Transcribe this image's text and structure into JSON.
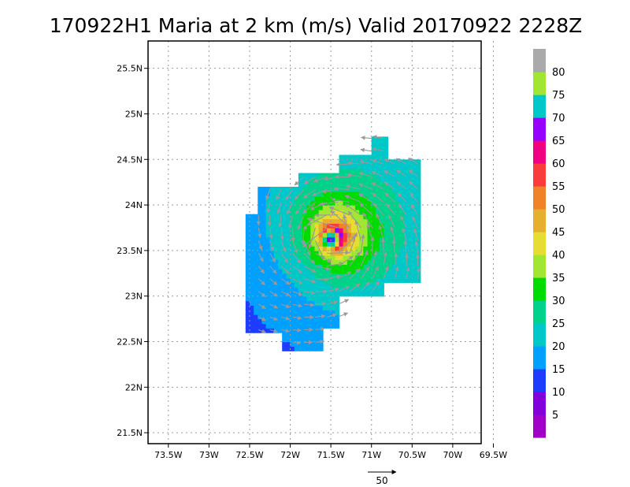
{
  "chart_data": {
    "type": "heatmap",
    "title": "170922H1 Maria at 2 km (m/s) Valid 20170922 2228Z",
    "xlim": [
      -73.75,
      -69.65
    ],
    "ylim": [
      21.38,
      25.8
    ],
    "x_ticks": [
      -73.5,
      -73,
      -72.5,
      -72,
      -71.5,
      -71,
      -70.5,
      -70,
      -69.5
    ],
    "x_tick_labels": [
      "73.5W",
      "73W",
      "72.5W",
      "72W",
      "71.5W",
      "71W",
      "70.5W",
      "70W",
      "69.5W"
    ],
    "y_ticks": [
      21.5,
      22,
      22.5,
      23,
      23.5,
      24,
      24.5,
      25,
      25.5
    ],
    "y_tick_labels": [
      "21.5N",
      "22N",
      "22.5N",
      "23N",
      "23.5N",
      "24N",
      "24.5N",
      "25N",
      "25.5N"
    ],
    "grid": true,
    "colorbar": {
      "levels": [
        0,
        5,
        10,
        15,
        20,
        25,
        30,
        35,
        40,
        45,
        50,
        55,
        60,
        65,
        70,
        75,
        80,
        85
      ],
      "colors": [
        "#a000c8",
        "#8200dc",
        "#1e3cff",
        "#00a0ff",
        "#00c8c8",
        "#00d28c",
        "#00dc00",
        "#a0e632",
        "#e6dc32",
        "#e6af2d",
        "#f08228",
        "#fa3c3c",
        "#f00082",
        "#9600ff",
        "#00c8c8",
        "#a0e632",
        "#aaaaaa"
      ],
      "labels": [
        "5",
        "10",
        "15",
        "20",
        "25",
        "30",
        "35",
        "40",
        "45",
        "50",
        "55",
        "60",
        "65",
        "70",
        "75",
        "80"
      ]
    },
    "storm_center": {
      "lon": -71.5,
      "lat": 23.63
    },
    "max_wind_ms": 57,
    "vector_reference": {
      "label": "50",
      "value_ms": 50
    }
  }
}
